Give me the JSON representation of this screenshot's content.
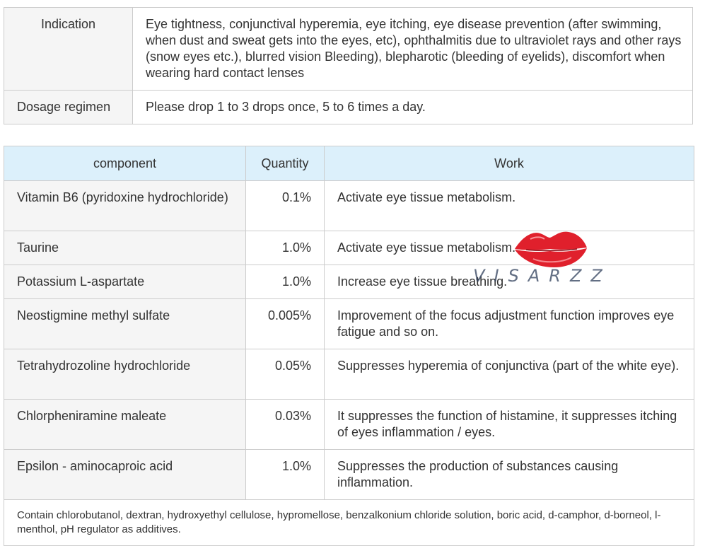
{
  "info": {
    "indication_label": "Indication",
    "indication_value": "Eye tightness, conjunctival hyperemia, eye itching, eye disease prevention (after swimming, when dust and sweat gets into the eyes, etc), ophthalmitis due to ultraviolet rays and other rays (snow eyes etc.), blurred vision Bleeding), blepharotic (bleeding of eyelids), discomfort when wearing hard contact lenses",
    "dosage_label": "Dosage regimen",
    "dosage_value": "Please drop 1 to 3 drops once, 5 to 6 times a day."
  },
  "components": {
    "headers": [
      "component",
      "Quantity",
      "Work"
    ],
    "rows": [
      {
        "name": "Vitamin B6 (pyridoxine hydrochloride)",
        "qty": "0.1%",
        "work": "Activate eye tissue metabolism."
      },
      {
        "name": "Taurine",
        "qty": "1.0%",
        "work": "Activate eye tissue metabolism."
      },
      {
        "name": "Potassium L-aspartate",
        "qty": "1.0%",
        "work": "Increase eye tissue breathing."
      },
      {
        "name": "Neostigmine methyl sulfate",
        "qty": "0.005%",
        "work": "Improvement of the focus adjustment function improves eye fatigue and so on."
      },
      {
        "name": "Tetrahydrozoline hydrochloride",
        "qty": "0.05%",
        "work": "Suppresses hyperemia of conjunctiva (part of the white eye)."
      },
      {
        "name": "Chlorpheniramine maleate",
        "qty": "0.03%",
        "work": "It suppresses the function of histamine, it suppresses itching of eyes inflammation / eyes."
      },
      {
        "name": "Epsilon - aminocaproic acid",
        "qty": "1.0%",
        "work": "Suppresses the production of substances causing inflammation."
      }
    ],
    "footnote": "Contain chlorobutanol, dextran, hydroxyethyl cellulose, hypromellose, benzalkonium chloride solution, boric acid, d-camphor, d-borneol, l-menthol, pH regulator as additives."
  },
  "watermark": {
    "text": "VISARZZ",
    "lips_color": "#e0202c"
  },
  "colors": {
    "header_bg": "#dcf0fb",
    "label_bg": "#f5f5f5",
    "border": "#cccccc",
    "text": "#333333"
  }
}
